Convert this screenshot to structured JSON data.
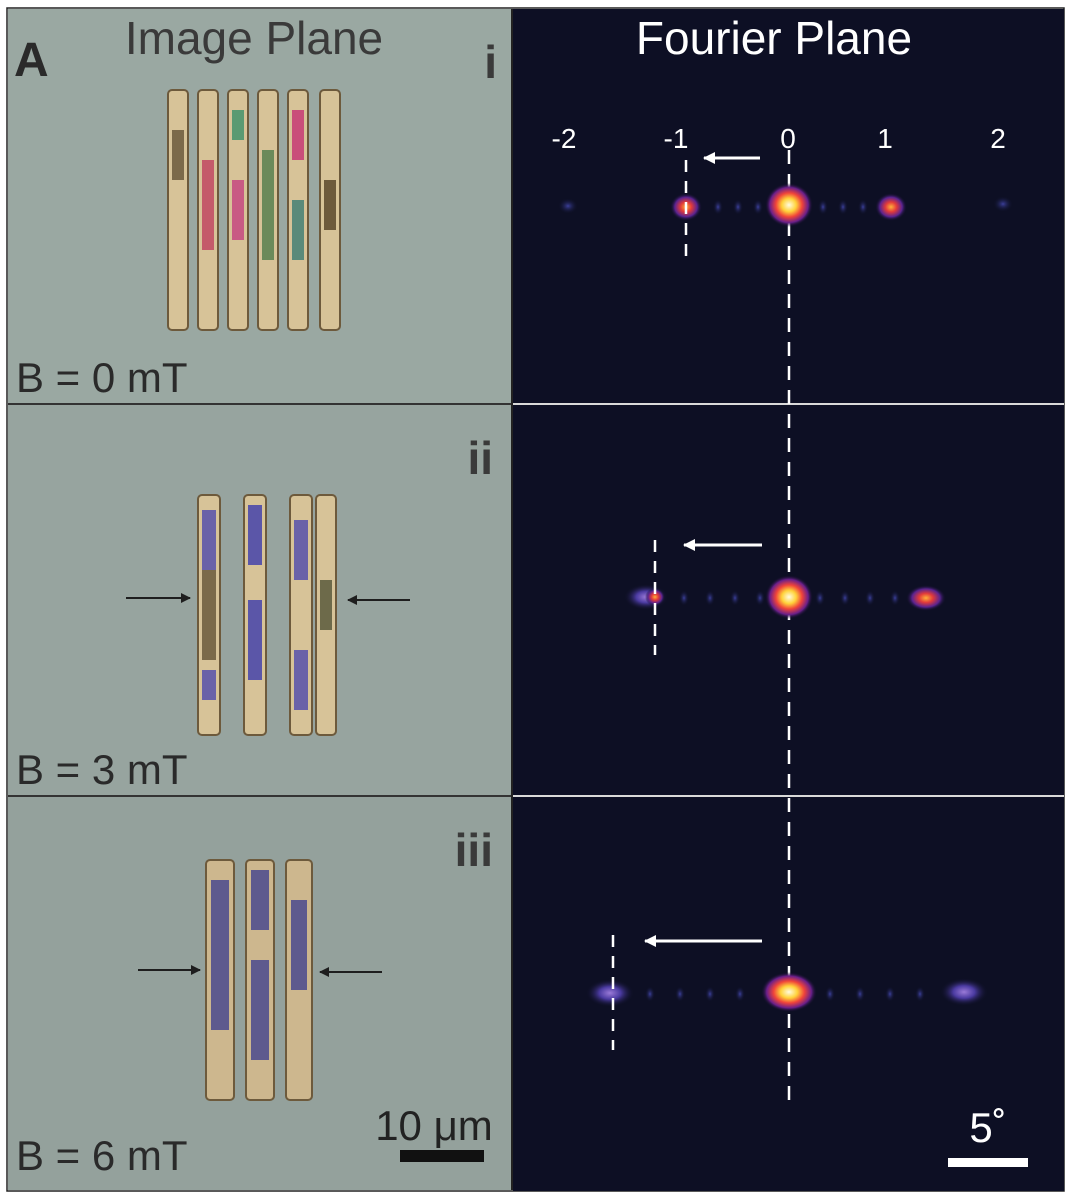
{
  "figure": {
    "panel_letter": "A",
    "left_column_title": "Image Plane",
    "right_column_title": "Fourier Plane",
    "order_labels": [
      "-2",
      "-1",
      "0",
      "1",
      "2"
    ],
    "rows": [
      {
        "roman": "i",
        "field_label": "B = 0 mT"
      },
      {
        "roman": "ii",
        "field_label": "B = 3 mT"
      },
      {
        "roman": "iii",
        "field_label": "B = 6 mT"
      }
    ],
    "scale_bar_image": "10 μm",
    "scale_bar_fourier": "5˚"
  },
  "colors": {
    "image_background": "#98a5a0",
    "fourier_background": "#0d0f24",
    "text_dark": "#2a2a2a",
    "text_light": "#ffffff"
  }
}
